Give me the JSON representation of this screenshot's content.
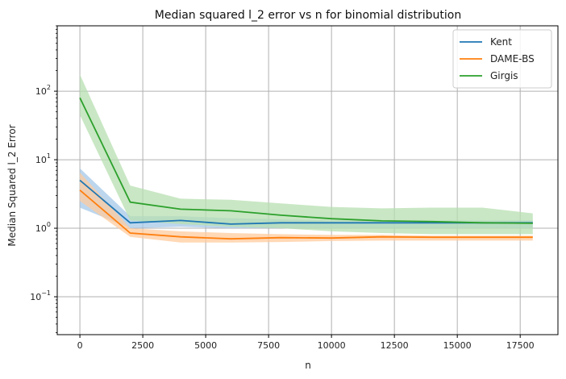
{
  "chart_data": {
    "type": "line",
    "title": "Median squared l_2 error vs n for binomial distribution",
    "xlabel": "n",
    "ylabel": "Median Squared l_2 Error",
    "y_scale": "log",
    "xlim": [
      -900,
      19000
    ],
    "ylim": [
      0.028,
      900
    ],
    "x_ticks": [
      0,
      2500,
      5000,
      7500,
      10000,
      12500,
      15000,
      17500
    ],
    "x_tick_labels": [
      "0",
      "2500",
      "5000",
      "7500",
      "10000",
      "12500",
      "15000",
      "17500"
    ],
    "y_major_ticks": [
      0.1,
      1,
      10,
      100
    ],
    "y_tick_labels": [
      {
        "base": "10",
        "exp": "−1"
      },
      {
        "base": "10",
        "exp": "0"
      },
      {
        "base": "10",
        "exp": "1"
      },
      {
        "base": "10",
        "exp": "2"
      }
    ],
    "grid": true,
    "legend_position": "top-right",
    "x": [
      0,
      2000,
      4000,
      6000,
      8000,
      10000,
      12000,
      14000,
      16000,
      18000
    ],
    "series": [
      {
        "name": "Kent",
        "color": "#1f77b4",
        "band_color": "#a6c8e8",
        "values": [
          5.0,
          1.2,
          1.3,
          1.15,
          1.2,
          1.2,
          1.2,
          1.2,
          1.2,
          1.2
        ],
        "lower": [
          2.0,
          1.0,
          1.05,
          1.0,
          1.0,
          1.0,
          1.0,
          1.0,
          1.0,
          1.0
        ],
        "upper": [
          7.5,
          1.5,
          1.5,
          1.4,
          1.35,
          1.3,
          1.3,
          1.3,
          1.3,
          1.3
        ]
      },
      {
        "name": "DAME-BS",
        "color": "#ff7f0e",
        "band_color": "#ffcb9e",
        "values": [
          3.6,
          0.85,
          0.75,
          0.7,
          0.73,
          0.72,
          0.75,
          0.74,
          0.74,
          0.74
        ],
        "lower": [
          2.5,
          0.75,
          0.62,
          0.62,
          0.63,
          0.65,
          0.66,
          0.66,
          0.66,
          0.66
        ],
        "upper": [
          6.5,
          1.0,
          0.9,
          0.85,
          0.82,
          0.8,
          0.8,
          0.78,
          0.78,
          0.78
        ]
      },
      {
        "name": "Girgis",
        "color": "#2ca02c",
        "band_color": "#b7dfb0",
        "values": [
          80,
          2.4,
          1.9,
          1.8,
          1.55,
          1.38,
          1.28,
          1.25,
          1.2,
          1.18
        ],
        "lower": [
          45,
          1.3,
          1.15,
          1.05,
          1.0,
          0.9,
          0.85,
          0.82,
          0.82,
          0.82
        ],
        "upper": [
          175,
          4.2,
          2.7,
          2.6,
          2.3,
          2.05,
          1.95,
          2.0,
          2.0,
          1.65
        ]
      }
    ]
  }
}
